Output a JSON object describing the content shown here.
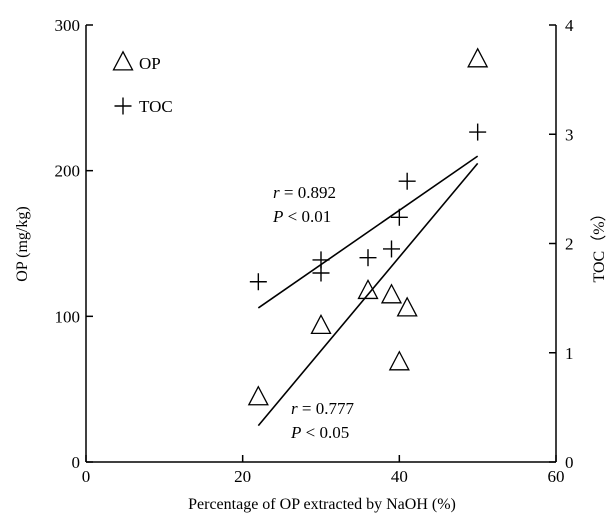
{
  "chart_data": {
    "type": "scatter",
    "xlabel": "Percentage of OP extracted by NaOH (%)",
    "ylabel_left": "OP (mg/kg)",
    "ylabel_right": "TOC（%）",
    "xlim": [
      0,
      60
    ],
    "ylim_left": [
      0,
      300
    ],
    "ylim_right": [
      0,
      4
    ],
    "xticks": [
      "0",
      "20",
      "40",
      "60"
    ],
    "yticks_left": [
      "0",
      "100",
      "200",
      "300"
    ],
    "yticks_right": [
      "0",
      "1",
      "2",
      "3",
      "4"
    ],
    "grid": false,
    "legend_position": "top-left",
    "series": [
      {
        "name": "OP",
        "marker": "triangle",
        "axis": "left",
        "points": [
          [
            22,
            44
          ],
          [
            30,
            93
          ],
          [
            36,
            117
          ],
          [
            39,
            114
          ],
          [
            40,
            68
          ],
          [
            41,
            105
          ],
          [
            50,
            276
          ]
        ],
        "fit": {
          "x": [
            22,
            50
          ],
          "y": [
            25,
            205
          ]
        },
        "annotation": {
          "r_label": "r",
          "r_value": " = 0.777",
          "p_label": "P",
          "p_value": " < 0.05"
        }
      },
      {
        "name": "TOC",
        "marker": "plus",
        "axis": "right",
        "points": [
          [
            22,
            1.65
          ],
          [
            30,
            1.73
          ],
          [
            30,
            1.85
          ],
          [
            36,
            1.87
          ],
          [
            39,
            1.95
          ],
          [
            40,
            2.24
          ],
          [
            41,
            2.57
          ],
          [
            50,
            3.02
          ]
        ],
        "fit": {
          "x": [
            22,
            50
          ],
          "y": [
            1.41,
            2.8
          ]
        },
        "annotation": {
          "r_label": "r",
          "r_value": " = 0.892",
          "p_label": "P",
          "p_value": " < 0.01"
        }
      }
    ]
  }
}
